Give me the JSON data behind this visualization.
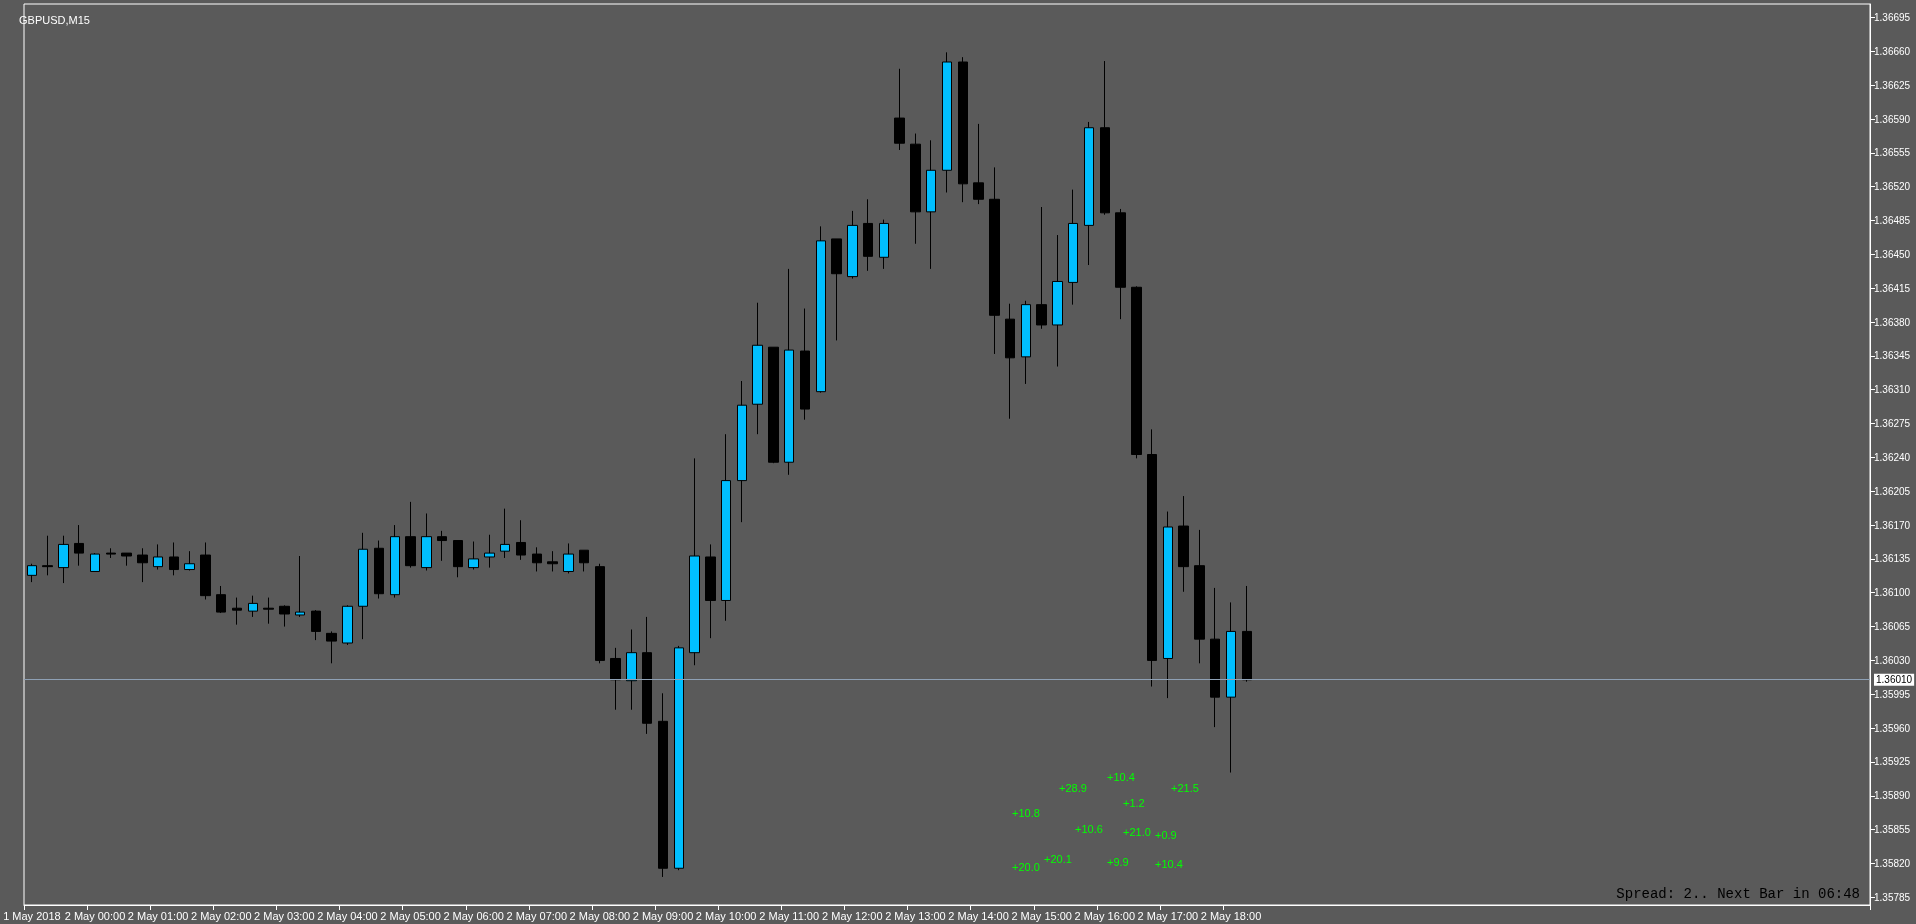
{
  "chart_data": {
    "type": "candlestick",
    "title": "GBPUSD,M15",
    "categories": [
      "1 May 2018",
      null,
      null,
      null,
      "2 May 00:00",
      null,
      null,
      null,
      "2 May 01:00",
      null,
      null,
      null,
      "2 May 02:00",
      null,
      null,
      null,
      "2 May 03:00",
      null,
      null,
      null,
      "2 May 04:00",
      null,
      null,
      null,
      "2 May 05:00",
      null,
      null,
      null,
      "2 May 06:00",
      null,
      null,
      null,
      "2 May 07:00",
      null,
      null,
      null,
      "2 May 08:00",
      null,
      null,
      null,
      "2 May 09:00",
      null,
      null,
      null,
      "2 May 10:00",
      null,
      null,
      null,
      "2 May 11:00",
      null,
      null,
      null,
      "2 May 12:00",
      null,
      null,
      null,
      "2 May 13:00",
      null,
      null,
      null,
      "2 May 14:00",
      null,
      null,
      null,
      "2 May 15:00",
      null,
      null,
      null,
      "2 May 16:00",
      null,
      null,
      null,
      "2 May 17:00",
      null,
      null,
      null,
      "2 May 18:00",
      null,
      null,
      null,
      null,
      null,
      null,
      null,
      null,
      null,
      null,
      null,
      null,
      null,
      null,
      null,
      null,
      null,
      null,
      null,
      null,
      null,
      null,
      null,
      null,
      null,
      null,
      null,
      null,
      null,
      null,
      null,
      null,
      null,
      null,
      null,
      null,
      null,
      null,
      null,
      null
    ],
    "ohlc": [
      [
        1.36118,
        1.3613,
        1.36111,
        1.36128
      ],
      [
        1.36128,
        1.36159,
        1.36118,
        1.36127
      ],
      [
        1.36126,
        1.36159,
        1.3611,
        1.3615
      ],
      [
        1.36151,
        1.3617,
        1.36128,
        1.36141
      ],
      [
        1.36122,
        1.36141,
        1.36122,
        1.3614
      ],
      [
        1.36141,
        1.36146,
        1.36136,
        1.3614
      ],
      [
        1.36141,
        1.36141,
        1.36128,
        1.36138
      ],
      [
        1.36139,
        1.36146,
        1.36111,
        1.36131
      ],
      [
        1.36127,
        1.3615,
        1.36124,
        1.36137
      ],
      [
        1.36137,
        1.36152,
        1.36118,
        1.36124
      ],
      [
        1.36124,
        1.36143,
        1.36123,
        1.3613
      ],
      [
        1.36139,
        1.36152,
        1.36093,
        1.36097
      ],
      [
        1.36098,
        1.36107,
        1.36079,
        1.3608
      ],
      [
        1.36084,
        1.36095,
        1.36067,
        1.36082
      ],
      [
        1.36081,
        1.36097,
        1.36075,
        1.36089
      ],
      [
        1.36084,
        1.36095,
        1.36068,
        1.36083
      ],
      [
        1.36086,
        1.36087,
        1.36065,
        1.36078
      ],
      [
        1.36077,
        1.36138,
        1.36075,
        1.3608
      ],
      [
        1.36081,
        1.36082,
        1.36051,
        1.3606
      ],
      [
        1.36058,
        1.3606,
        1.36027,
        1.3605
      ],
      [
        1.36048,
        1.36087,
        1.36046,
        1.36086
      ],
      [
        1.36086,
        1.36162,
        1.36052,
        1.36145
      ],
      [
        1.36146,
        1.36154,
        1.36094,
        1.36099
      ],
      [
        1.36098,
        1.3617,
        1.36095,
        1.36158
      ],
      [
        1.36158,
        1.36194,
        1.36126,
        1.36128
      ],
      [
        1.36126,
        1.36182,
        1.36123,
        1.36158
      ],
      [
        1.36158,
        1.36164,
        1.36133,
        1.36154
      ],
      [
        1.36154,
        1.36154,
        1.36116,
        1.36127
      ],
      [
        1.36126,
        1.36153,
        1.36124,
        1.36135
      ],
      [
        1.36137,
        1.3616,
        1.36126,
        1.36141
      ],
      [
        1.36143,
        1.36187,
        1.36136,
        1.3615
      ],
      [
        1.36152,
        1.36175,
        1.36134,
        1.36139
      ],
      [
        1.3614,
        1.36147,
        1.36122,
        1.36131
      ],
      [
        1.36132,
        1.36143,
        1.36122,
        1.3613
      ],
      [
        1.36122,
        1.36151,
        1.3612,
        1.3614
      ],
      [
        1.36144,
        1.36144,
        1.36122,
        1.36131
      ],
      [
        1.36127,
        1.3613,
        1.36027,
        1.3603
      ],
      [
        1.36032,
        1.36043,
        1.35979,
        1.3601
      ],
      [
        1.36009,
        1.36062,
        1.35979,
        1.36038
      ],
      [
        1.36038,
        1.36075,
        1.35954,
        1.35965
      ],
      [
        1.35967,
        1.35996,
        1.35806,
        1.35815
      ],
      [
        1.35815,
        1.36045,
        1.35813,
        1.36043
      ],
      [
        1.36038,
        1.36239,
        1.36025,
        1.36138
      ],
      [
        1.36137,
        1.3615,
        1.36053,
        1.36092
      ],
      [
        1.36092,
        1.36264,
        1.36071,
        1.36216
      ],
      [
        1.36216,
        1.36319,
        1.36173,
        1.36294
      ],
      [
        1.36295,
        1.364,
        1.36264,
        1.36356
      ],
      [
        1.36354,
        1.36354,
        1.36234,
        1.36235
      ],
      [
        1.36235,
        1.36435,
        1.36222,
        1.36351
      ],
      [
        1.3635,
        1.36394,
        1.36279,
        1.3629
      ],
      [
        1.36308,
        1.36479,
        1.36307,
        1.36464
      ],
      [
        1.36466,
        1.36466,
        1.36361,
        1.3643
      ],
      [
        1.36427,
        1.36495,
        1.36425,
        1.3648
      ],
      [
        1.36482,
        1.36507,
        1.36433,
        1.36448
      ],
      [
        1.36447,
        1.36486,
        1.36435,
        1.36482
      ],
      [
        1.36591,
        1.36642,
        1.36558,
        1.36565
      ],
      [
        1.36564,
        1.36575,
        1.36461,
        1.36494
      ],
      [
        1.36494,
        1.36568,
        1.36435,
        1.36537
      ],
      [
        1.36537,
        1.36659,
        1.36514,
        1.36649
      ],
      [
        1.36649,
        1.36654,
        1.36504,
        1.36523
      ],
      [
        1.36524,
        1.36585,
        1.36502,
        1.36507
      ],
      [
        1.36507,
        1.3654,
        1.36347,
        1.36387
      ],
      [
        1.36383,
        1.36399,
        1.3628,
        1.36343
      ],
      [
        1.36344,
        1.36402,
        1.36316,
        1.36398
      ],
      [
        1.36398,
        1.36499,
        1.36373,
        1.36377
      ],
      [
        1.36377,
        1.3647,
        1.36334,
        1.36422
      ],
      [
        1.36421,
        1.36517,
        1.36398,
        1.36482
      ],
      [
        1.3648,
        1.36587,
        1.36439,
        1.36581
      ],
      [
        1.36581,
        1.3665,
        1.36491,
        1.36493
      ],
      [
        1.36493,
        1.36497,
        1.36383,
        1.36416
      ],
      [
        1.36416,
        1.36417,
        1.36239,
        1.36243
      ],
      [
        1.36243,
        1.36269,
        1.36003,
        1.3603
      ],
      [
        1.36032,
        1.36184,
        1.35991,
        1.36168
      ],
      [
        1.36169,
        1.362,
        1.36101,
        1.36127
      ],
      [
        1.36128,
        1.36165,
        1.36027,
        1.36052
      ],
      [
        1.36052,
        1.36105,
        1.35961,
        1.35992
      ],
      [
        1.35992,
        1.3609,
        1.35914,
        1.3606
      ],
      [
        1.3606,
        1.36107,
        1.36008,
        1.3601
      ],
      null,
      null,
      null,
      null,
      null,
      null,
      null,
      null,
      null,
      null,
      null,
      null,
      null,
      null,
      null,
      null,
      null,
      null,
      null,
      null,
      null,
      null,
      null,
      null,
      null,
      null,
      null,
      null,
      null,
      null,
      null,
      null,
      null,
      null,
      null,
      null,
      null,
      null,
      null
    ],
    "colors": [
      "#00bfff",
      "#000000",
      "#00bfff",
      "#000000",
      "#00bfff",
      "#000000",
      "#000000",
      "#000000",
      "#00bfff",
      "#000000",
      "#00bfff",
      "#000000",
      "#000000",
      "#000000",
      "#00bfff",
      "#000000",
      "#000000",
      "#00bfff",
      "#000000",
      "#000000",
      "#00bfff",
      "#00bfff",
      "#000000",
      "#00bfff",
      "#000000",
      "#00bfff",
      "#000000",
      "#000000",
      "#00bfff",
      "#00bfff",
      "#00bfff",
      "#000000",
      "#000000",
      "#000000",
      "#00bfff",
      "#000000",
      "#000000",
      "#000000",
      "#00bfff",
      "#000000",
      "#000000",
      "#00bfff",
      "#00bfff",
      "#000000",
      "#00bfff",
      "#00bfff",
      "#00bfff",
      "#000000",
      "#00bfff",
      "#000000",
      "#00bfff",
      "#000000",
      "#00bfff",
      "#000000",
      "#00bfff",
      "#000000",
      "#000000",
      "#00bfff",
      "#00bfff",
      "#000000",
      "#000000",
      "#000000",
      "#000000",
      "#00bfff",
      "#000000",
      "#00bfff",
      "#00bfff",
      "#00bfff",
      "#000000",
      "#000000",
      "#000000",
      "#000000",
      "#00bfff",
      "#000000",
      "#000000",
      "#000000",
      "#00bfff",
      "#000000",
      null,
      null,
      null,
      null,
      null,
      null,
      null,
      null,
      null,
      null,
      null,
      null,
      null,
      null,
      null,
      null,
      null,
      null,
      null,
      null,
      null,
      null,
      null,
      null,
      null,
      null,
      null,
      null,
      null,
      null,
      null,
      null,
      null,
      null,
      null,
      null,
      null,
      null,
      null
    ],
    "ylim": [
      1.35777,
      1.36709
    ],
    "yticks": [
      1.35785,
      {
        "value": 1.3582,
        "label": "1.35820"
      },
      1.35855,
      {
        "value": 1.3589,
        "label": "1.35890"
      },
      1.35925,
      {
        "value": 1.3596,
        "label": "1.35960"
      },
      1.35995,
      {
        "value": 1.3603,
        "label": "1.36030"
      },
      1.36065,
      {
        "value": 1.361,
        "label": "1.36100"
      },
      1.36135,
      {
        "value": 1.3617,
        "label": "1.36170"
      },
      1.36205,
      {
        "value": 1.3624,
        "label": "1.36240"
      },
      1.36275,
      {
        "value": 1.3631,
        "label": "1.36310"
      },
      1.36345,
      {
        "value": 1.3638,
        "label": "1.36380"
      },
      1.36415,
      {
        "value": 1.3645,
        "label": "1.36450"
      },
      1.36485,
      {
        "value": 1.3652,
        "label": "1.36520"
      },
      1.36555,
      {
        "value": 1.3659,
        "label": "1.36590"
      },
      1.36625,
      {
        "value": 1.3666,
        "label": "1.36660"
      },
      1.36695
    ],
    "ref_lines": [
      {
        "axis": "y",
        "value": 1.3601,
        "label": "1.36010",
        "color": "#8ea0b4"
      }
    ],
    "annotations": [
      "+28.9",
      "+10.4",
      "+1.2",
      "+21.5",
      "+10.8",
      "+10.6",
      "+21.0",
      "+0.9",
      "+20.0",
      "+20.1",
      "+9.9",
      "+10.4",
      "Spread: 2.. Next Bar in 06:48"
    ]
  }
}
